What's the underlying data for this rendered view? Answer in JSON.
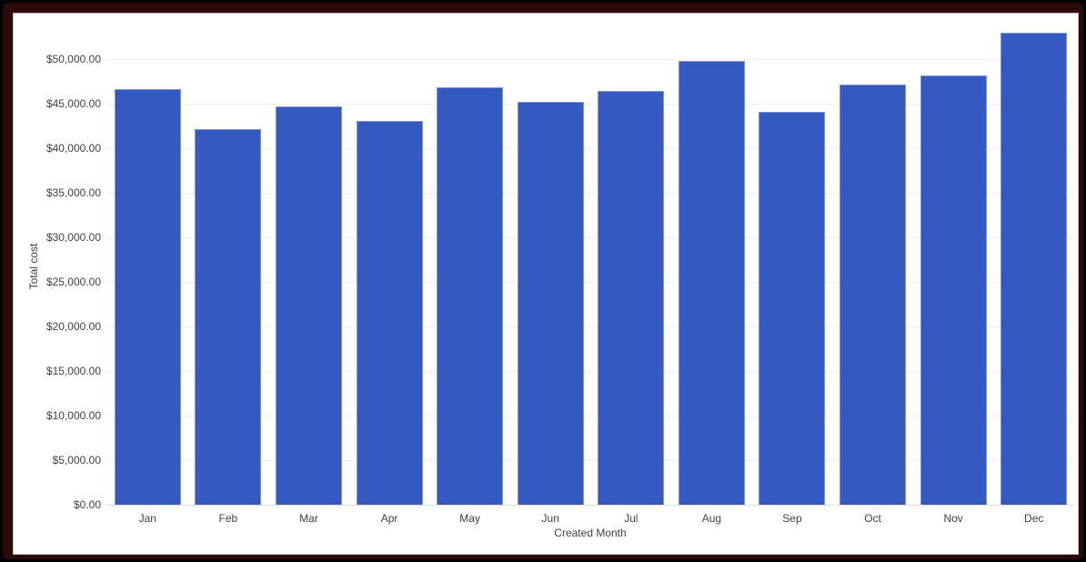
{
  "frame": {
    "outer_color": "#000000",
    "border_color": "#2d0a0a",
    "card_background": "#ffffff"
  },
  "chart_data": {
    "type": "bar",
    "title": "",
    "xlabel": "Created Month",
    "ylabel": "Total cost",
    "categories": [
      "Jan",
      "Feb",
      "Mar",
      "Apr",
      "May",
      "Jun",
      "Jul",
      "Aug",
      "Sep",
      "Oct",
      "Nov",
      "Dec"
    ],
    "values": [
      46600,
      42100,
      44700,
      43050,
      46800,
      45250,
      46400,
      49750,
      44050,
      47150,
      48200,
      53000
    ],
    "series": [
      {
        "name": "Total cost",
        "values": [
          46600,
          42100,
          44700,
          43050,
          46800,
          45250,
          46400,
          49750,
          44050,
          47150,
          48200,
          53000
        ]
      }
    ],
    "ylim": [
      0,
      55000
    ],
    "y_tick_interval": 5000,
    "y_ticks": [
      0,
      5000,
      10000,
      15000,
      20000,
      25000,
      30000,
      35000,
      40000,
      45000,
      50000
    ],
    "y_tick_labels": [
      "$0.00",
      "$5,000.00",
      "$10,000.00",
      "$15,000.00",
      "$20,000.00",
      "$25,000.00",
      "$30,000.00",
      "$35,000.00",
      "$40,000.00",
      "$45,000.00",
      "$50,000.00"
    ],
    "grid": true,
    "legend": "none",
    "bar_color": "#3459c1",
    "bar_border_color": "#8093d9",
    "gridline_color": "#efefef",
    "axis_line_color": "#dadce0",
    "label_color": "#424242"
  }
}
